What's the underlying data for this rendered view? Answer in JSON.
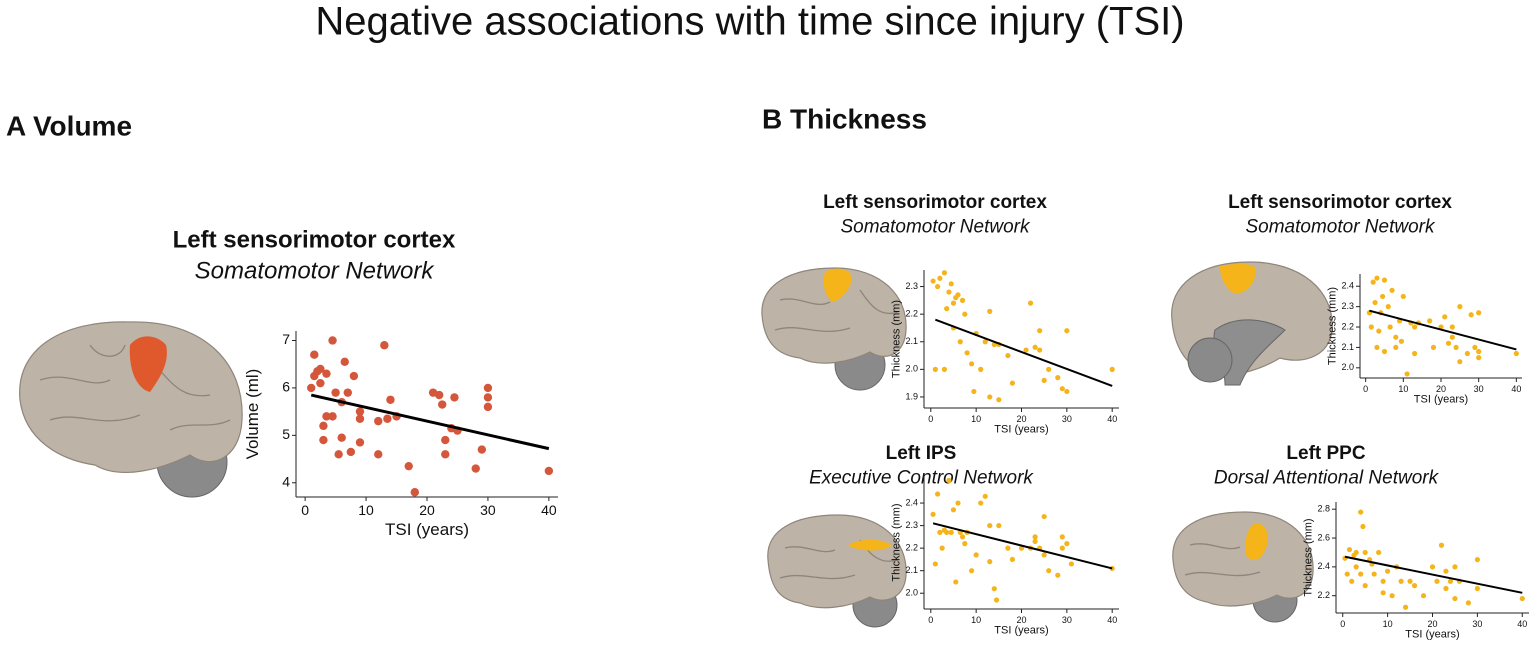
{
  "title": "Negative associations with time since injury (TSI)",
  "panels": [
    "A Volume",
    "B Thickness"
  ],
  "chart_data": [
    {
      "type": "scatter",
      "title": "Left sensorimotor cortex",
      "subtitle": "Somatomotor Network",
      "xlabel": "TSI (years)",
      "ylabel": "Volume (ml)",
      "color": "#d4573b",
      "xlim": [
        -1.5,
        41.5
      ],
      "ylim": [
        3.7,
        7.2
      ],
      "xticks": [
        0,
        10,
        20,
        30,
        40
      ],
      "yticks": [
        4,
        5,
        6,
        7
      ],
      "x": [
        1,
        1.5,
        1.5,
        2,
        2.5,
        2.5,
        3,
        3,
        3.5,
        3.5,
        4.5,
        4.5,
        5,
        5.5,
        6,
        6,
        6.5,
        7,
        7.5,
        8,
        9,
        9,
        9,
        12,
        12,
        13,
        13.5,
        14,
        15,
        17,
        18,
        21,
        22,
        22.5,
        23,
        23,
        24,
        24.5,
        25,
        28,
        29,
        30,
        30,
        30,
        40
      ],
      "values": [
        6.0,
        6.25,
        6.7,
        6.35,
        6.4,
        6.1,
        5.2,
        4.9,
        6.3,
        5.4,
        7.0,
        5.4,
        5.9,
        4.6,
        5.7,
        4.95,
        6.55,
        5.9,
        4.65,
        6.25,
        5.5,
        5.35,
        4.85,
        4.6,
        5.3,
        6.9,
        5.35,
        5.75,
        5.4,
        4.35,
        3.8,
        5.9,
        5.85,
        5.65,
        4.9,
        4.6,
        5.15,
        5.8,
        5.1,
        4.3,
        4.7,
        6.0,
        5.8,
        5.6,
        4.25
      ],
      "fit": {
        "color": "#000000",
        "x": [
          1,
          40
        ],
        "values": [
          5.85,
          4.72
        ]
      }
    },
    {
      "type": "scatter",
      "title": "Left sensorimotor cortex",
      "subtitle": "Somatomotor Network",
      "xlabel": "TSI (years)",
      "ylabel": "Thickness (mm)",
      "color": "#f4b41a",
      "xlim": [
        -1.5,
        41.5
      ],
      "ylim": [
        1.86,
        2.36
      ],
      "xticks": [
        0,
        10,
        20,
        30,
        40
      ],
      "yticks": [
        1.9,
        {
          "value": 2,
          "label": "2.0"
        },
        2.1,
        2.2,
        2.3
      ],
      "x": [
        0.5,
        1,
        1.5,
        2,
        3,
        3,
        3.5,
        4,
        4.5,
        5,
        5,
        5.5,
        6,
        6.5,
        7,
        7.5,
        8,
        9,
        9.5,
        10,
        11,
        12,
        13,
        13,
        14,
        15,
        15,
        17,
        18,
        21,
        22,
        23,
        24,
        24,
        25,
        26,
        28,
        29,
        30,
        30,
        40
      ],
      "values": [
        2.32,
        2.0,
        2.3,
        2.33,
        2.35,
        2.0,
        2.22,
        2.28,
        2.31,
        2.24,
        2.15,
        2.26,
        2.27,
        2.1,
        2.25,
        2.2,
        2.06,
        2.02,
        1.92,
        2.13,
        2.0,
        2.1,
        2.21,
        1.9,
        2.09,
        2.09,
        1.89,
        2.05,
        1.95,
        2.07,
        2.24,
        2.08,
        2.07,
        2.14,
        1.96,
        2.0,
        1.97,
        1.93,
        2.14,
        1.92,
        2.0
      ],
      "fit": {
        "color": "#000000",
        "x": [
          1,
          40
        ],
        "values": [
          2.18,
          1.94
        ]
      }
    },
    {
      "type": "scatter",
      "title": "Left sensorimotor cortex",
      "subtitle": "Somatomotor Network",
      "xlabel": "TSI (years)",
      "ylabel": "Thickness (mm)",
      "color": "#f4b41a",
      "xlim": [
        -1.5,
        41.5
      ],
      "ylim": [
        1.95,
        2.46
      ],
      "xticks": [
        0,
        10,
        20,
        30,
        40
      ],
      "yticks": [
        {
          "value": 2,
          "label": "2.0"
        },
        2.1,
        2.2,
        2.3,
        2.4
      ],
      "x": [
        1,
        1.5,
        2,
        2.5,
        3,
        3,
        3.5,
        4,
        4.5,
        5,
        5,
        6,
        6.5,
        7,
        8,
        8,
        9,
        9.5,
        10,
        11,
        12,
        13,
        13,
        14,
        17,
        18,
        20,
        21,
        22,
        23,
        23,
        24,
        25,
        25,
        27,
        28,
        29,
        30,
        30,
        30,
        40
      ],
      "values": [
        2.27,
        2.2,
        2.42,
        2.32,
        2.44,
        2.1,
        2.18,
        2.27,
        2.35,
        2.43,
        2.08,
        2.3,
        2.2,
        2.38,
        2.15,
        2.1,
        2.23,
        2.13,
        2.35,
        1.97,
        2.22,
        2.07,
        2.2,
        2.22,
        2.23,
        2.1,
        2.2,
        2.25,
        2.12,
        2.15,
        2.2,
        2.1,
        2.3,
        2.03,
        2.07,
        2.26,
        2.1,
        2.27,
        2.08,
        2.05,
        2.07
      ],
      "fit": {
        "color": "#000000",
        "x": [
          1,
          40
        ],
        "values": [
          2.28,
          2.09
        ]
      }
    },
    {
      "type": "scatter",
      "title": "Left IPS",
      "subtitle": "Executive Control Network",
      "xlabel": "TSI (years)",
      "ylabel": "Thickness (mm)",
      "color": "#f4b41a",
      "xlim": [
        -1.5,
        41.5
      ],
      "ylim": [
        1.93,
        2.52
      ],
      "xticks": [
        0,
        10,
        20,
        30,
        40
      ],
      "yticks": [
        {
          "value": 2,
          "label": "2.0"
        },
        2.1,
        2.2,
        2.3,
        2.4
      ],
      "x": [
        0.5,
        1,
        1.5,
        2,
        2.5,
        3,
        3.5,
        4,
        4.5,
        5,
        5.5,
        6,
        6.5,
        7,
        7.5,
        8,
        9,
        10,
        11,
        12,
        13,
        13,
        14,
        14.5,
        15,
        17,
        18,
        20,
        22,
        23,
        23,
        24,
        25,
        25,
        26,
        28,
        29,
        29,
        30,
        31,
        40
      ],
      "values": [
        2.35,
        2.13,
        2.44,
        2.27,
        2.2,
        2.28,
        2.27,
        2.5,
        2.27,
        2.37,
        2.05,
        2.4,
        2.27,
        2.25,
        2.22,
        2.27,
        2.1,
        2.17,
        2.4,
        2.43,
        2.3,
        2.14,
        2.02,
        1.97,
        2.3,
        2.2,
        2.15,
        2.2,
        2.2,
        2.25,
        2.23,
        2.2,
        2.34,
        2.17,
        2.1,
        2.08,
        2.2,
        2.25,
        2.22,
        2.13,
        2.11
      ],
      "fit": {
        "color": "#000000",
        "x": [
          0.5,
          40
        ],
        "values": [
          2.31,
          2.11
        ]
      }
    },
    {
      "type": "scatter",
      "title": "Left PPC",
      "subtitle": "Dorsal Attentional Network",
      "xlabel": "TSI (years)",
      "ylabel": "Thickness (mm)",
      "color": "#f4b41a",
      "xlim": [
        -1.5,
        41.5
      ],
      "ylim": [
        2.08,
        2.85
      ],
      "xticks": [
        0,
        10,
        20,
        30,
        40
      ],
      "yticks": [
        2.2,
        2.4,
        2.6,
        2.8
      ],
      "x": [
        0.5,
        1,
        1.5,
        2,
        2.5,
        3,
        3,
        4,
        4,
        4.5,
        5,
        5,
        6,
        6.5,
        7,
        8,
        9,
        9,
        10,
        11,
        12,
        13,
        14,
        15,
        16,
        18,
        20,
        21,
        22,
        23,
        23,
        24,
        25,
        25,
        26,
        28,
        30,
        30,
        40
      ],
      "values": [
        2.46,
        2.35,
        2.52,
        2.3,
        2.48,
        2.5,
        2.4,
        2.35,
        2.78,
        2.68,
        2.27,
        2.5,
        2.45,
        2.42,
        2.35,
        2.5,
        2.3,
        2.22,
        2.37,
        2.2,
        2.4,
        2.3,
        2.12,
        2.3,
        2.27,
        2.2,
        2.4,
        2.3,
        2.55,
        2.37,
        2.25,
        2.3,
        2.4,
        2.18,
        2.3,
        2.15,
        2.25,
        2.45,
        2.18
      ],
      "fit": {
        "color": "#000000",
        "x": [
          0.5,
          40
        ],
        "values": [
          2.47,
          2.22
        ]
      }
    }
  ]
}
